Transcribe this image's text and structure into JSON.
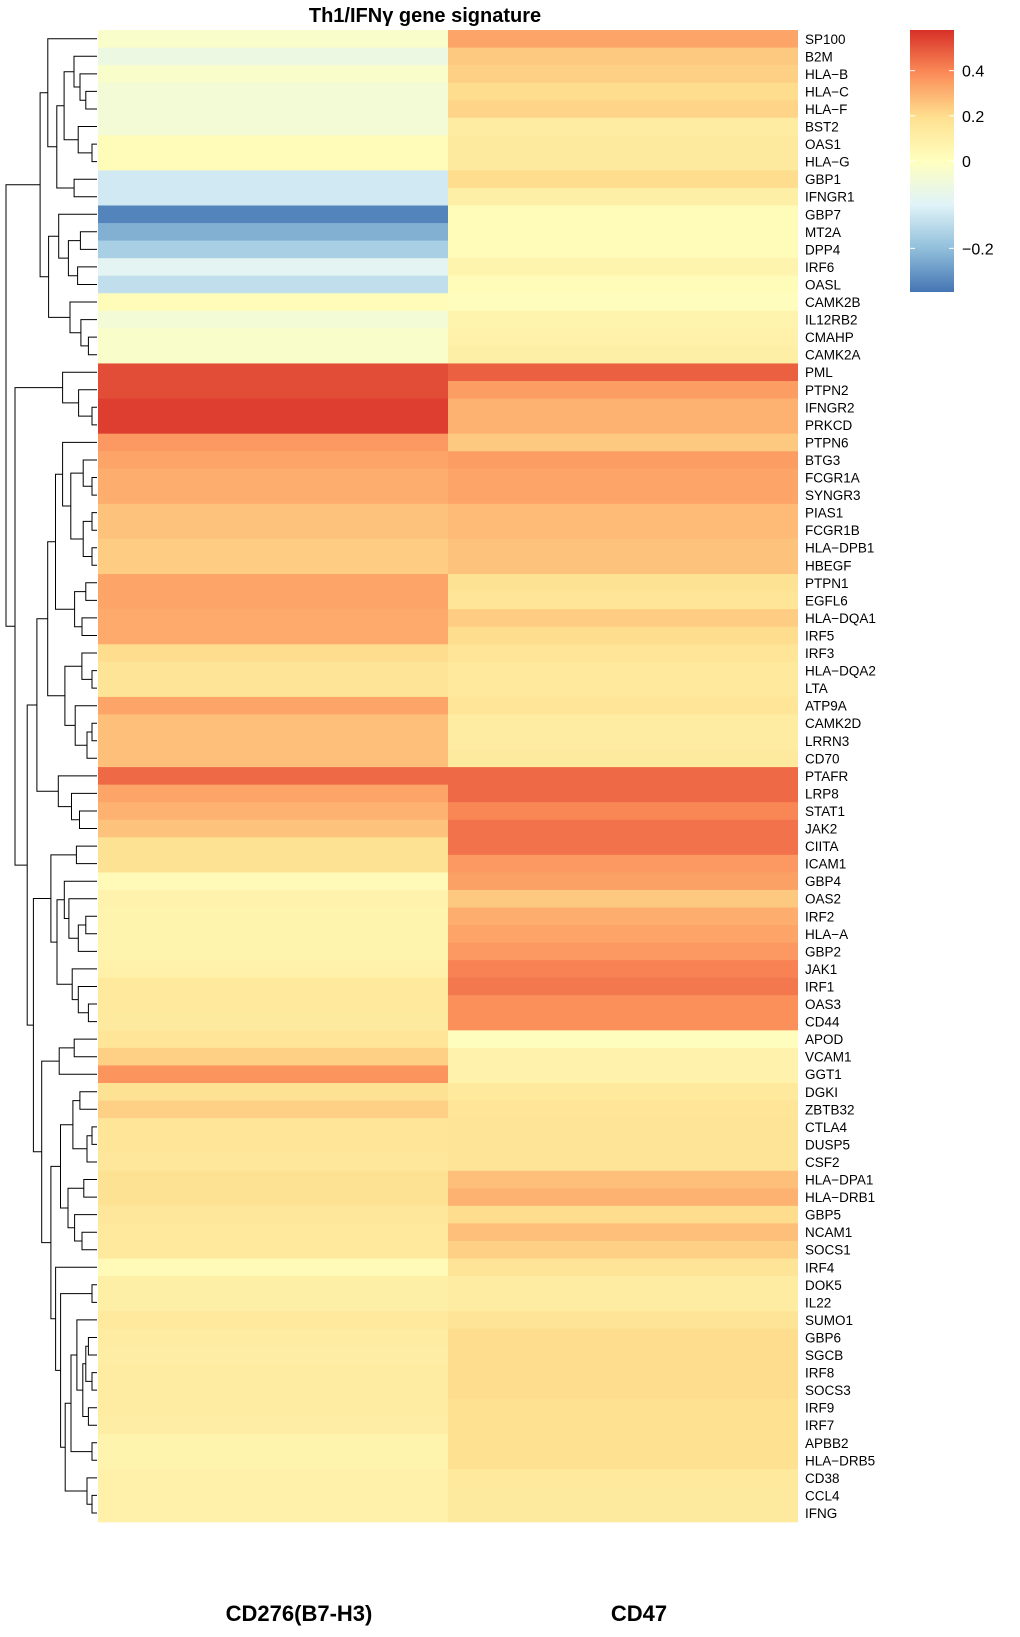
{
  "chart_data": {
    "type": "heatmap",
    "title": "Th1/IFNγ gene signature",
    "columns": [
      "CD276(B7-H3)",
      "CD47"
    ],
    "rows": [
      "SP100",
      "B2M",
      "HLA−B",
      "HLA−C",
      "HLA−F",
      "BST2",
      "OAS1",
      "HLA−G",
      "GBP1",
      "IFNGR1",
      "GBP7",
      "MT2A",
      "DPP4",
      "IRF6",
      "OASL",
      "CAMK2B",
      "IL12RB2",
      "CMAHP",
      "CAMK2A",
      "PML",
      "PTPN2",
      "IFNGR2",
      "PRKCD",
      "PTPN6",
      "BTG3",
      "FCGR1A",
      "SYNGR3",
      "PIAS1",
      "FCGR1B",
      "HLA−DPB1",
      "HBEGF",
      "PTPN1",
      "EGFL6",
      "HLA−DQA1",
      "IRF5",
      "IRF3",
      "HLA−DQA2",
      "LTA",
      "ATP9A",
      "CAMK2D",
      "LRRN3",
      "CD70",
      "PTAFR",
      "LRP8",
      "STAT1",
      "JAK2",
      "CIITA",
      "ICAM1",
      "GBP4",
      "OAS2",
      "IRF2",
      "HLA−A",
      "GBP2",
      "JAK1",
      "IRF1",
      "OAS3",
      "CD44",
      "APOD",
      "VCAM1",
      "GGT1",
      "DGKI",
      "ZBTB32",
      "CTLA4",
      "DUSP5",
      "CSF2",
      "HLA−DPA1",
      "HLA−DRB1",
      "GBP5",
      "NCAM1",
      "SOCS1",
      "IRF4",
      "DOK5",
      "IL22",
      "SUMO1",
      "GBP6",
      "SGCB",
      "IRF8",
      "SOCS3",
      "IRF9",
      "IRF7",
      "APBB2",
      "HLA−DRB5",
      "CD38",
      "CCL4",
      "IFNG"
    ],
    "values": [
      [
        -0.02,
        0.33
      ],
      [
        -0.06,
        0.25
      ],
      [
        -0.02,
        0.23
      ],
      [
        -0.04,
        0.2
      ],
      [
        -0.04,
        0.22
      ],
      [
        -0.04,
        0.12
      ],
      [
        0.02,
        0.13
      ],
      [
        0.02,
        0.13
      ],
      [
        -0.12,
        0.2
      ],
      [
        -0.12,
        0.1
      ],
      [
        -0.28,
        0.02
      ],
      [
        -0.22,
        0.02
      ],
      [
        -0.17,
        0.02
      ],
      [
        -0.09,
        0.07
      ],
      [
        -0.14,
        0.02
      ],
      [
        0.02,
        0.01
      ],
      [
        -0.04,
        0.07
      ],
      [
        -0.02,
        0.09
      ],
      [
        -0.02,
        0.1
      ],
      [
        0.52,
        0.48
      ],
      [
        0.52,
        0.35
      ],
      [
        0.55,
        0.3
      ],
      [
        0.55,
        0.3
      ],
      [
        0.36,
        0.25
      ],
      [
        0.33,
        0.35
      ],
      [
        0.31,
        0.33
      ],
      [
        0.31,
        0.33
      ],
      [
        0.26,
        0.28
      ],
      [
        0.26,
        0.28
      ],
      [
        0.24,
        0.26
      ],
      [
        0.24,
        0.26
      ],
      [
        0.33,
        0.18
      ],
      [
        0.33,
        0.16
      ],
      [
        0.32,
        0.24
      ],
      [
        0.32,
        0.2
      ],
      [
        0.2,
        0.16
      ],
      [
        0.17,
        0.14
      ],
      [
        0.17,
        0.14
      ],
      [
        0.33,
        0.16
      ],
      [
        0.27,
        0.12
      ],
      [
        0.27,
        0.12
      ],
      [
        0.27,
        0.13
      ],
      [
        0.46,
        0.46
      ],
      [
        0.33,
        0.46
      ],
      [
        0.3,
        0.4
      ],
      [
        0.26,
        0.44
      ],
      [
        0.18,
        0.44
      ],
      [
        0.18,
        0.36
      ],
      [
        0.03,
        0.34
      ],
      [
        0.08,
        0.25
      ],
      [
        0.07,
        0.31
      ],
      [
        0.07,
        0.33
      ],
      [
        0.07,
        0.36
      ],
      [
        0.09,
        0.41
      ],
      [
        0.14,
        0.43
      ],
      [
        0.14,
        0.38
      ],
      [
        0.13,
        0.38
      ],
      [
        0.16,
        0.01
      ],
      [
        0.23,
        0.08
      ],
      [
        0.37,
        0.08
      ],
      [
        0.18,
        0.14
      ],
      [
        0.23,
        0.16
      ],
      [
        0.16,
        0.17
      ],
      [
        0.16,
        0.17
      ],
      [
        0.15,
        0.17
      ],
      [
        0.18,
        0.27
      ],
      [
        0.18,
        0.3
      ],
      [
        0.15,
        0.2
      ],
      [
        0.14,
        0.27
      ],
      [
        0.14,
        0.23
      ],
      [
        0.03,
        0.17
      ],
      [
        0.1,
        0.12
      ],
      [
        0.1,
        0.12
      ],
      [
        0.14,
        0.17
      ],
      [
        0.12,
        0.2
      ],
      [
        0.11,
        0.2
      ],
      [
        0.12,
        0.2
      ],
      [
        0.12,
        0.2
      ],
      [
        0.12,
        0.19
      ],
      [
        0.11,
        0.19
      ],
      [
        0.07,
        0.19
      ],
      [
        0.07,
        0.19
      ],
      [
        0.09,
        0.14
      ],
      [
        0.09,
        0.13
      ],
      [
        0.09,
        0.13
      ]
    ],
    "colorbar": {
      "ticks": [
        0.4,
        0.2,
        0,
        -0.2
      ],
      "tick_labels": [
        "0.4",
        "0.2",
        "0",
        "−0.2"
      ],
      "min": -0.3,
      "max": 0.58
    },
    "colormap": [
      "#4575b4",
      "#91bfdb",
      "#e0f3f8",
      "#ffffbf",
      "#fee090",
      "#fc8d59",
      "#d73027"
    ],
    "dendrogram": "rows"
  }
}
